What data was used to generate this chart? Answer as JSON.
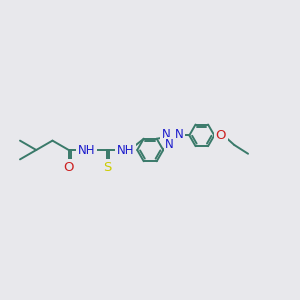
{
  "bg_color": "#e8e8ec",
  "bond_color": "#3a7a6a",
  "bond_width": 1.4,
  "atom_colors": {
    "N": "#1a1acc",
    "O": "#cc2020",
    "S": "#cccc00",
    "C": "#3a7a6a"
  },
  "font_size": 8.5,
  "fig_size": [
    3.0,
    3.0
  ],
  "dpi": 100,
  "xlim": [
    0,
    12
  ],
  "ylim": [
    0,
    8
  ]
}
